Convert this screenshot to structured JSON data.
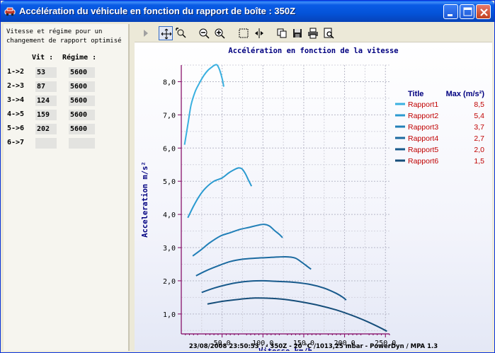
{
  "window": {
    "title": "Accélération du véhicule en fonction du rapport de boîte : 350Z"
  },
  "left_panel": {
    "description_line1": "Vitesse et régime pour un",
    "description_line2": "changement de rapport optimisé",
    "header_vit": "Vit :",
    "header_regime": "Régime :",
    "rows": [
      {
        "label": "1->2",
        "vit": "53",
        "regime": "5600"
      },
      {
        "label": "2->3",
        "vit": "87",
        "regime": "5600"
      },
      {
        "label": "3->4",
        "vit": "124",
        "regime": "5600"
      },
      {
        "label": "4->5",
        "vit": "159",
        "regime": "5600"
      },
      {
        "label": "5->6",
        "vit": "202",
        "regime": "5600"
      },
      {
        "label": "6->7",
        "vit": "",
        "regime": ""
      }
    ]
  },
  "toolbar": {
    "icons": [
      "play-icon",
      "pan-icon",
      "zoom-box-icon",
      "zoom-out-icon",
      "zoom-in-icon",
      "select-rect-icon",
      "split-icon",
      "copy-icon",
      "save-icon",
      "print-icon",
      "print-preview-icon"
    ]
  },
  "footer": {
    "text": "23/08/2008 23:50:53 :  - 350Z - 20 °C /1013,25 mbar - PowerDyn / MPA 1.3"
  },
  "chart_data": {
    "type": "line",
    "title": "Accélération en fonction de la vitesse",
    "xlabel": "Vitesse km/h",
    "ylabel": "Acceleration m/s²",
    "xlim": [
      0,
      255
    ],
    "ylim": [
      0.4,
      8.5
    ],
    "x_ticks": [
      "50,0",
      "100,0",
      "150,0",
      "200,0",
      "250,0"
    ],
    "y_ticks": [
      "1,0",
      "2,0",
      "3,0",
      "4,0",
      "5,0",
      "6,0",
      "7,0",
      "8,0"
    ],
    "grid": true,
    "legend": {
      "position": "top-right",
      "header_title": "Title",
      "header_max": "Max (m/s²)"
    },
    "series": [
      {
        "name": "Rapport1",
        "max": "8,5",
        "color": "#3ab0e0",
        "x": [
          4,
          8,
          12,
          17,
          22,
          28,
          33,
          38,
          41,
          44,
          47,
          50,
          52
        ],
        "y": [
          6.1,
          6.7,
          7.3,
          7.7,
          7.95,
          8.2,
          8.35,
          8.45,
          8.5,
          8.5,
          8.35,
          8.1,
          7.85
        ]
      },
      {
        "name": "Rapport2",
        "max": "5,4",
        "color": "#2a9ad0",
        "x": [
          8,
          15,
          22,
          30,
          40,
          50,
          58,
          65,
          70,
          74,
          78,
          82,
          86
        ],
        "y": [
          3.9,
          4.25,
          4.55,
          4.8,
          5.0,
          5.1,
          5.25,
          5.35,
          5.4,
          5.38,
          5.25,
          5.05,
          4.85
        ]
      },
      {
        "name": "Rapport3",
        "max": "3,7",
        "color": "#2280b8",
        "x": [
          14,
          25,
          35,
          48,
          60,
          72,
          85,
          95,
          102,
          108,
          114,
          120,
          124
        ],
        "y": [
          2.75,
          2.95,
          3.15,
          3.35,
          3.45,
          3.55,
          3.62,
          3.68,
          3.7,
          3.65,
          3.52,
          3.4,
          3.3
        ]
      },
      {
        "name": "Rapport4",
        "max": "2,7",
        "color": "#1b6aa0",
        "x": [
          18,
          30,
          45,
          60,
          75,
          90,
          105,
          120,
          132,
          140,
          148,
          155,
          159
        ],
        "y": [
          2.15,
          2.3,
          2.45,
          2.58,
          2.65,
          2.68,
          2.7,
          2.72,
          2.72,
          2.68,
          2.55,
          2.42,
          2.35
        ]
      },
      {
        "name": "Rapport5",
        "max": "2,0",
        "color": "#185a8c",
        "x": [
          25,
          40,
          55,
          70,
          85,
          100,
          120,
          140,
          160,
          175,
          190,
          198,
          202
        ],
        "y": [
          1.65,
          1.78,
          1.88,
          1.95,
          1.99,
          2.0,
          1.98,
          1.95,
          1.88,
          1.78,
          1.62,
          1.5,
          1.42
        ]
      },
      {
        "name": "Rapport6",
        "max": "1,5",
        "color": "#164e7a",
        "x": [
          32,
          50,
          70,
          90,
          110,
          130,
          150,
          170,
          190,
          210,
          225,
          240,
          252
        ],
        "y": [
          1.3,
          1.38,
          1.44,
          1.48,
          1.47,
          1.43,
          1.35,
          1.25,
          1.12,
          0.95,
          0.8,
          0.63,
          0.48
        ]
      }
    ]
  }
}
